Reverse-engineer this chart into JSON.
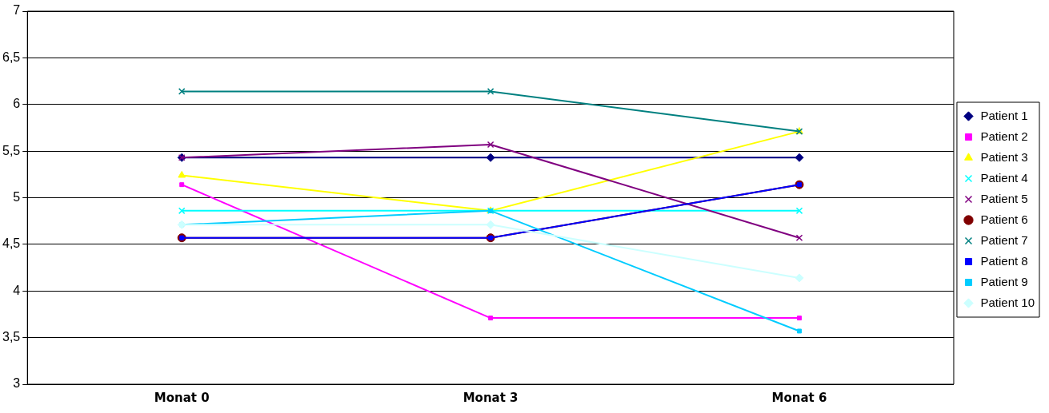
{
  "chart_data": {
    "type": "line",
    "categories": [
      "Monat 0",
      "Monat 3",
      "Monat 6"
    ],
    "ylim": [
      3,
      7
    ],
    "yticks": [
      3,
      {
        "value": 3.5,
        "label": "3,5"
      },
      4,
      {
        "value": 4.5,
        "label": "4,5"
      },
      5,
      {
        "value": 5.5,
        "label": "5,5"
      },
      6,
      {
        "value": 6.5,
        "label": "6,5"
      },
      7
    ],
    "grid": "y",
    "legend": "right",
    "line_style": "solid",
    "series": [
      {
        "name": "Patient 1",
        "color": "#000080",
        "marker": "diamond",
        "values": [
          5.43,
          5.43,
          5.43
        ]
      },
      {
        "name": "Patient 2",
        "color": "#ff00ff",
        "marker": "square",
        "values": [
          5.14,
          3.71,
          3.71
        ]
      },
      {
        "name": "Patient 3",
        "color": "#ffff00",
        "marker": "triangle",
        "values": [
          5.24,
          4.86,
          5.71
        ]
      },
      {
        "name": "Patient 4",
        "color": "#00ffff",
        "marker": "cross",
        "values": [
          4.86,
          4.86,
          4.86
        ]
      },
      {
        "name": "Patient 5",
        "color": "#800080",
        "marker": "cross",
        "values": [
          5.43,
          5.57,
          4.57
        ]
      },
      {
        "name": "Patient 6",
        "color": "#800000",
        "marker": "circle",
        "values": [
          4.57,
          4.57,
          5.14
        ]
      },
      {
        "name": "Patient 7",
        "color": "#008080",
        "marker": "cross",
        "values": [
          6.14,
          6.14,
          5.71
        ]
      },
      {
        "name": "Patient 8",
        "color": "#0000ff",
        "marker": "square",
        "values": [
          4.57,
          4.57,
          5.14
        ]
      },
      {
        "name": "Patient 9",
        "color": "#00ccff",
        "marker": "square",
        "values": [
          4.71,
          4.86,
          3.57
        ]
      },
      {
        "name": "Patient 10",
        "color": "#ccffff",
        "marker": "diamond",
        "values": [
          4.71,
          4.71,
          4.14
        ]
      }
    ]
  }
}
